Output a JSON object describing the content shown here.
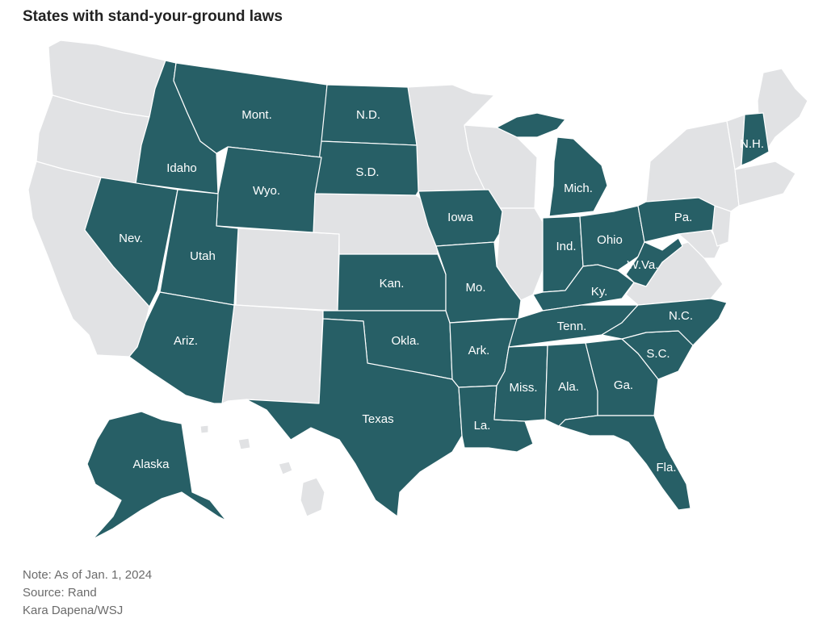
{
  "title": "States with stand-your-ground laws",
  "colors": {
    "has_law": "#275f66",
    "no_law": "#e1e2e4",
    "label": "#ffffff"
  },
  "states_with_law": [
    "Mont.",
    "N.D.",
    "S.D.",
    "Idaho",
    "Wyo.",
    "Nev.",
    "Utah",
    "Ariz.",
    "Kan.",
    "Okla.",
    "Texas",
    "Iowa",
    "Mo.",
    "Ark.",
    "La.",
    "Mich.",
    "Ind.",
    "Ohio",
    "Ky.",
    "Tenn.",
    "Miss.",
    "Ala.",
    "Ga.",
    "Fla.",
    "S.C.",
    "N.C.",
    "W.Va.",
    "Pa.",
    "N.H.",
    "Alaska"
  ],
  "states_without_law": [
    "Wash.",
    "Ore.",
    "Calif.",
    "Colo.",
    "N.M.",
    "Neb.",
    "Minn.",
    "Wis.",
    "Ill.",
    "Va.",
    "Md.",
    "Del.",
    "N.J.",
    "N.Y.",
    "Conn.",
    "R.I.",
    "Mass.",
    "Vt.",
    "Maine",
    "Hawaii"
  ],
  "footer": {
    "note": "Note: As of Jan. 1, 2024",
    "source": "Source: Rand",
    "credit": "Kara Dapena/WSJ"
  }
}
